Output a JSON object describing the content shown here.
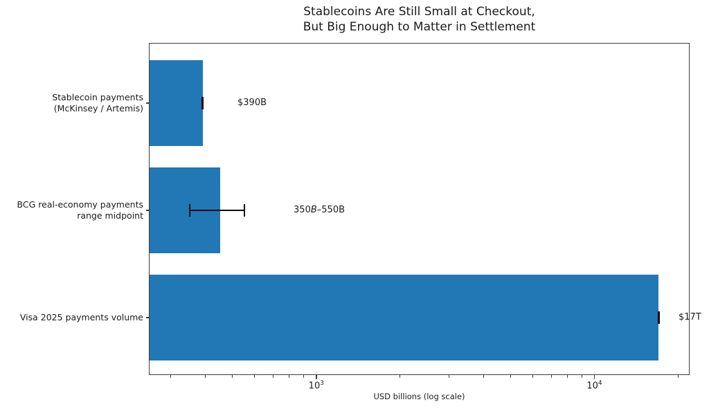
{
  "chart_data": {
    "type": "bar",
    "orientation": "horizontal",
    "x_scale": "log",
    "title": "Stablecoins Are Still Small at Checkout,\nBut Big Enough to Matter in Settlement",
    "title_lines": [
      "Stablecoins Are Still Small at Checkout,",
      "But Big Enough to Matter in Settlement"
    ],
    "xlabel": "USD billions (log scale)",
    "ylabel": "",
    "xlim": [
      250,
      22000
    ],
    "grid": false,
    "legend": null,
    "bar_color": "#2178b5",
    "error_color": "#0d0d0d",
    "text_color": "#1a1a1a",
    "spine_color": "#3c3c3c",
    "categories": [
      {
        "lines": [
          "Stablecoin payments",
          "(McKinsey / Artemis)"
        ]
      },
      {
        "lines": [
          "BCG real-economy payments",
          "range midpoint"
        ]
      },
      {
        "lines": [
          "Visa 2025 payments volume"
        ]
      }
    ],
    "values": [
      390,
      450,
      17000
    ],
    "error_ranges": [
      [
        390,
        390
      ],
      [
        350,
        550
      ],
      [
        17000,
        17000
      ]
    ],
    "annotations": [
      {
        "text": "$390B"
      },
      {
        "text": "350B–550B",
        "italic_chars": [
          3
        ]
      },
      {
        "text": "$17T"
      }
    ],
    "x_major_ticks": [
      {
        "value": 1000,
        "label_base": "10",
        "label_exp": "3"
      },
      {
        "value": 10000,
        "label_base": "10",
        "label_exp": "4"
      }
    ],
    "x_minor_ticks": [
      300,
      400,
      500,
      600,
      700,
      800,
      900,
      2000,
      3000,
      4000,
      5000,
      6000,
      7000,
      8000,
      9000,
      20000
    ]
  }
}
